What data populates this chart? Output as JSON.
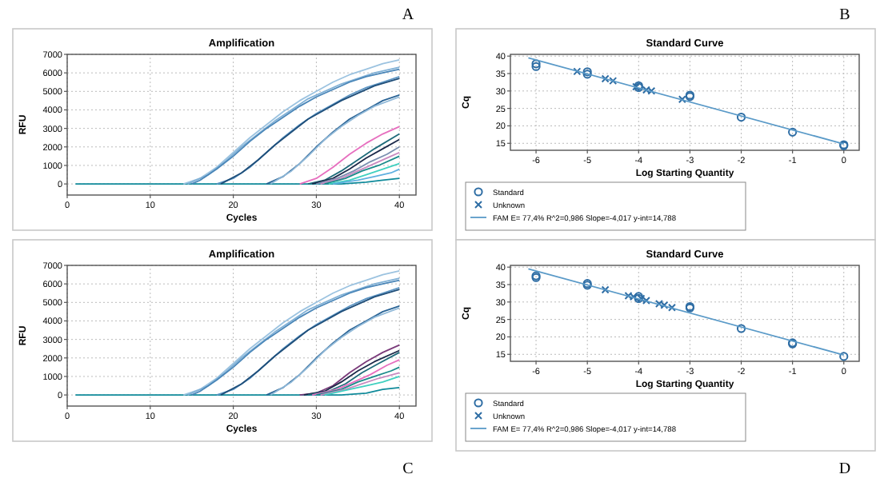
{
  "chart_data": [
    {
      "type": "line",
      "title": "Amplification",
      "xlabel": "Cycles",
      "ylabel": "RFU",
      "annotations": [
        "A"
      ],
      "grid": true,
      "xlim": [
        0,
        42
      ],
      "ylim": [
        -600,
        7000
      ],
      "xticks": [
        0,
        10,
        20,
        30,
        40
      ],
      "yticks": [
        0,
        1000,
        2000,
        3000,
        4000,
        5000,
        6000,
        7000
      ],
      "series": [
        {
          "color": "#0f8a9a",
          "x": [
            1,
            5,
            10,
            33,
            36,
            38,
            40
          ],
          "values": [
            0,
            0,
            0,
            0,
            100,
            200,
            300
          ]
        },
        {
          "color": "#9cc3e0",
          "x": [
            14,
            16,
            18,
            20,
            22,
            24,
            26,
            28,
            30,
            32,
            34,
            36,
            38,
            40
          ],
          "values": [
            0,
            300,
            900,
            1700,
            2500,
            3200,
            3900,
            4500,
            5000,
            5500,
            5900,
            6200,
            6500,
            6700
          ]
        },
        {
          "color": "#7fb0d6",
          "x": [
            14.5,
            17,
            19,
            21,
            23,
            25,
            27,
            29,
            31,
            33,
            35,
            37,
            40
          ],
          "values": [
            0,
            500,
            1200,
            2000,
            2700,
            3400,
            4000,
            4600,
            5000,
            5400,
            5700,
            6000,
            6300
          ]
        },
        {
          "color": "#4a86b8",
          "x": [
            15,
            16,
            18,
            20,
            22,
            24,
            26,
            28,
            30,
            32,
            34,
            36,
            38,
            40
          ],
          "values": [
            0,
            200,
            800,
            1500,
            2300,
            3000,
            3600,
            4200,
            4700,
            5100,
            5500,
            5800,
            6000,
            6200
          ]
        },
        {
          "color": "#5c95c4",
          "x": [
            18,
            20,
            22,
            24,
            26,
            28,
            30,
            32,
            34,
            36,
            38,
            40
          ],
          "values": [
            0,
            300,
            900,
            1700,
            2500,
            3200,
            3800,
            4300,
            4800,
            5200,
            5500,
            5800
          ]
        },
        {
          "color": "#1f4e79",
          "x": [
            18.5,
            21,
            23,
            25,
            27,
            29,
            31,
            33,
            35,
            37,
            40
          ],
          "values": [
            0,
            600,
            1300,
            2100,
            2800,
            3500,
            4000,
            4500,
            4900,
            5300,
            5700
          ]
        },
        {
          "color": "#2a6496",
          "x": [
            24,
            26,
            28,
            30,
            32,
            34,
            36,
            38,
            40
          ],
          "values": [
            0,
            400,
            1100,
            2000,
            2800,
            3500,
            4000,
            4500,
            4800
          ]
        },
        {
          "color": "#8fb8d8",
          "x": [
            24.5,
            27,
            29,
            31,
            33,
            35,
            37,
            40
          ],
          "values": [
            0,
            700,
            1500,
            2400,
            3100,
            3700,
            4200,
            4700
          ]
        },
        {
          "color": "#e76fbf",
          "x": [
            28,
            30,
            32,
            34,
            36,
            38,
            40
          ],
          "values": [
            0,
            300,
            900,
            1600,
            2200,
            2700,
            3100
          ]
        },
        {
          "color": "#1e6b7a",
          "x": [
            29,
            31,
            33,
            35,
            37,
            40
          ],
          "values": [
            0,
            200,
            700,
            1300,
            1900,
            2700
          ]
        },
        {
          "color": "#1c2a4a",
          "x": [
            29.5,
            32,
            34,
            36,
            38,
            40
          ],
          "values": [
            0,
            300,
            800,
            1400,
            1900,
            2400
          ]
        },
        {
          "color": "#7a8fb0",
          "x": [
            30,
            32.5,
            34.5,
            36.5,
            38.5,
            40
          ],
          "values": [
            0,
            300,
            700,
            1200,
            1600,
            2000
          ]
        },
        {
          "color": "#c98ac0",
          "x": [
            30.5,
            33,
            35,
            37,
            39,
            40
          ],
          "values": [
            0,
            300,
            700,
            1100,
            1500,
            1700
          ]
        },
        {
          "color": "#1a8a8a",
          "x": [
            31,
            33.5,
            35.5,
            37.5,
            40
          ],
          "values": [
            0,
            300,
            700,
            1000,
            1500
          ]
        },
        {
          "color": "#40d0c0",
          "x": [
            31.5,
            34,
            36,
            38,
            40
          ],
          "values": [
            0,
            200,
            500,
            800,
            1100
          ]
        },
        {
          "color": "#5fb0e0",
          "x": [
            32,
            35,
            37,
            39,
            40
          ],
          "values": [
            0,
            200,
            400,
            600,
            800
          ]
        }
      ]
    },
    {
      "type": "scatter",
      "title": "Standard Curve",
      "xlabel": "Log Starting Quantity",
      "ylabel": "Cq",
      "annotations": [
        "B"
      ],
      "grid": true,
      "legend": "bottom",
      "xlim": [
        -6.5,
        0.3
      ],
      "ylim": [
        13,
        40.5
      ],
      "xticks": [
        -6,
        -5,
        -4,
        -3,
        -2,
        -1,
        0
      ],
      "yticks": [
        15,
        20,
        25,
        30,
        35,
        40
      ],
      "series": [
        {
          "name": "Standard",
          "marker": "circle",
          "color": "#2e6da4",
          "x": [
            -6,
            -6,
            -5,
            -5,
            -4,
            -4,
            -3,
            -3,
            -2,
            -1,
            0,
            0
          ],
          "values": [
            37,
            37.8,
            34.8,
            35.5,
            31,
            31.5,
            28.4,
            28.8,
            22.5,
            18.2,
            14.3,
            14.6
          ]
        },
        {
          "name": "Unknown",
          "marker": "cross",
          "color": "#2e6da4",
          "x": [
            -5.2,
            -4.65,
            -4.5,
            -4.05,
            -3.85,
            -3.75,
            -3.15
          ],
          "values": [
            35.6,
            33.5,
            32.9,
            31.2,
            30.3,
            30,
            27.6
          ]
        },
        {
          "name": "FAM     E= 77,4% R^2=0,986 Slope=-4,017 y-int=14,788",
          "type": "line",
          "color": "#5a9ac8",
          "x": [
            -6.15,
            0
          ],
          "values": [
            39.5,
            14.8
          ]
        }
      ]
    },
    {
      "type": "line",
      "title": "Amplification",
      "xlabel": "Cycles",
      "ylabel": "RFU",
      "annotations": [
        "C"
      ],
      "grid": true,
      "xlim": [
        0,
        42
      ],
      "ylim": [
        -600,
        7000
      ],
      "xticks": [
        0,
        10,
        20,
        30,
        40
      ],
      "yticks": [
        0,
        1000,
        2000,
        3000,
        4000,
        5000,
        6000,
        7000
      ],
      "series": [
        {
          "color": "#0f8a9a",
          "x": [
            1,
            5,
            10,
            33,
            36,
            38,
            40
          ],
          "values": [
            0,
            0,
            0,
            0,
            100,
            300,
            400
          ]
        },
        {
          "color": "#9cc3e0",
          "x": [
            14,
            16,
            18,
            20,
            22,
            24,
            26,
            28,
            30,
            32,
            34,
            36,
            38,
            40
          ],
          "values": [
            0,
            300,
            900,
            1700,
            2500,
            3200,
            3900,
            4500,
            5000,
            5500,
            5900,
            6200,
            6500,
            6700
          ]
        },
        {
          "color": "#7fb0d6",
          "x": [
            14.5,
            17,
            19,
            21,
            23,
            25,
            27,
            29,
            31,
            33,
            35,
            37,
            40
          ],
          "values": [
            0,
            500,
            1200,
            2000,
            2700,
            3400,
            4000,
            4600,
            5000,
            5400,
            5700,
            6000,
            6300
          ]
        },
        {
          "color": "#4a86b8",
          "x": [
            15,
            16,
            18,
            20,
            22,
            24,
            26,
            28,
            30,
            32,
            34,
            36,
            38,
            40
          ],
          "values": [
            0,
            200,
            800,
            1500,
            2300,
            3000,
            3600,
            4200,
            4700,
            5100,
            5500,
            5800,
            6000,
            6200
          ]
        },
        {
          "color": "#5c95c4",
          "x": [
            18,
            20,
            22,
            24,
            26,
            28,
            30,
            32,
            34,
            36,
            38,
            40
          ],
          "values": [
            0,
            300,
            900,
            1700,
            2500,
            3200,
            3800,
            4300,
            4800,
            5200,
            5500,
            5800
          ]
        },
        {
          "color": "#1f4e79",
          "x": [
            18.5,
            21,
            23,
            25,
            27,
            29,
            31,
            33,
            35,
            37,
            40
          ],
          "values": [
            0,
            600,
            1300,
            2100,
            2800,
            3500,
            4000,
            4500,
            4900,
            5300,
            5700
          ]
        },
        {
          "color": "#2a6496",
          "x": [
            24,
            26,
            28,
            30,
            32,
            34,
            36,
            38,
            40
          ],
          "values": [
            0,
            400,
            1100,
            2000,
            2800,
            3500,
            4000,
            4500,
            4800
          ]
        },
        {
          "color": "#8fb8d8",
          "x": [
            24.5,
            27,
            29,
            31,
            33,
            35,
            37,
            40
          ],
          "values": [
            0,
            700,
            1500,
            2400,
            3100,
            3700,
            4200,
            4700
          ]
        },
        {
          "color": "#7a3a7a",
          "x": [
            28,
            30,
            32,
            34,
            36,
            38,
            40
          ],
          "values": [
            0,
            100,
            500,
            1200,
            1800,
            2300,
            2700
          ]
        },
        {
          "color": "#1c2a4a",
          "x": [
            28.5,
            31,
            33,
            35,
            37,
            40
          ],
          "values": [
            0,
            200,
            700,
            1300,
            1800,
            2400
          ]
        },
        {
          "color": "#1e6b7a",
          "x": [
            29,
            31.5,
            33.5,
            35.5,
            37.5,
            40
          ],
          "values": [
            0,
            200,
            600,
            1200,
            1700,
            2300
          ]
        },
        {
          "color": "#e76fbf",
          "x": [
            29.5,
            32.5,
            34.5,
            36.5,
            38.5,
            40
          ],
          "values": [
            0,
            300,
            700,
            1100,
            1600,
            1900
          ]
        },
        {
          "color": "#1a8a8a",
          "x": [
            30,
            33,
            35,
            37,
            39,
            40
          ],
          "values": [
            0,
            300,
            700,
            1000,
            1300,
            1500
          ]
        },
        {
          "color": "#c98ac0",
          "x": [
            30.5,
            33.5,
            35.5,
            37.5,
            40
          ],
          "values": [
            0,
            300,
            600,
            900,
            1200
          ]
        },
        {
          "color": "#40d0c0",
          "x": [
            31,
            34,
            36,
            38,
            40
          ],
          "values": [
            0,
            300,
            500,
            700,
            1000
          ]
        }
      ]
    },
    {
      "type": "scatter",
      "title": "Standard Curve",
      "xlabel": "Log Starting Quantity",
      "ylabel": "Cq",
      "annotations": [
        "D"
      ],
      "grid": true,
      "legend": "bottom",
      "xlim": [
        -6.5,
        0.3
      ],
      "ylim": [
        13,
        40.5
      ],
      "xticks": [
        -6,
        -5,
        -4,
        -3,
        -2,
        -1,
        0
      ],
      "yticks": [
        15,
        20,
        25,
        30,
        35,
        40
      ],
      "series": [
        {
          "name": "Standard",
          "marker": "circle",
          "color": "#2e6da4",
          "x": [
            -6,
            -6,
            -5,
            -5,
            -4,
            -4,
            -3,
            -3,
            -2,
            -1,
            -1,
            0
          ],
          "values": [
            37,
            37.5,
            34.8,
            35.3,
            31,
            31.6,
            28.3,
            28.7,
            22.4,
            18,
            18.3,
            14.4
          ]
        },
        {
          "name": "Unknown",
          "marker": "cross",
          "color": "#2e6da4",
          "x": [
            -4.65,
            -4.2,
            -4.1,
            -3.95,
            -3.85,
            -3.6,
            -3.5,
            -3.35
          ],
          "values": [
            33.5,
            31.8,
            31.5,
            31,
            30.4,
            29.5,
            29.1,
            28.4
          ]
        },
        {
          "name": "FAM     E= 77,4% R^2=0,986 Slope=-4,017 y-int=14,788",
          "type": "line",
          "color": "#5a9ac8",
          "x": [
            -6.15,
            0
          ],
          "values": [
            39.5,
            14.8
          ]
        }
      ]
    }
  ]
}
